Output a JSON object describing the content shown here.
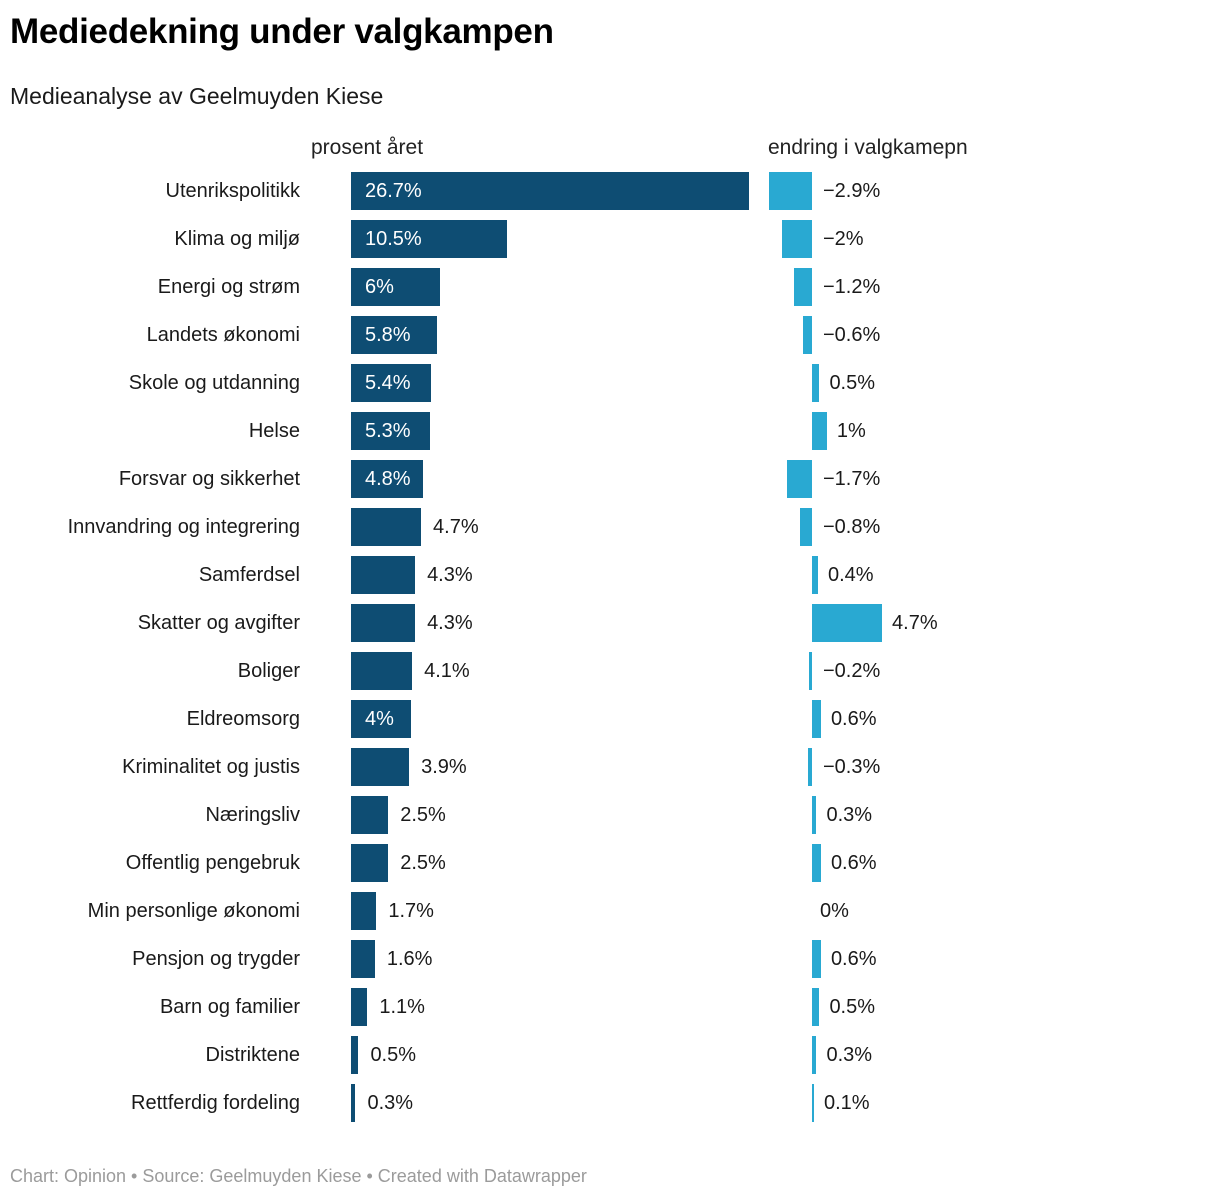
{
  "header": {
    "title": "Mediedekning under valgkampen",
    "subtitle": "Medieanalyse av Geelmuyden Kiese"
  },
  "footer": {
    "text": "Chart: Opinion • Source: Geelmuyden Kiese • Created with Datawrapper"
  },
  "colors": {
    "year_bar": "#0e4d73",
    "change_bar": "#29a9d2",
    "label_text": "#1a1a1a",
    "inside_label_text": "#ffffff",
    "footer_text": "#9b9b9b"
  },
  "chart_data": {
    "type": "bar",
    "orientation": "horizontal",
    "grid": false,
    "legend_position": "none",
    "value_suffix": "%",
    "columns": [
      {
        "key": "year",
        "header": "prosent året",
        "xlim": [
          0,
          26.7
        ],
        "diverging": false
      },
      {
        "key": "change",
        "header": "endring i valgkamepn",
        "xlim": [
          -2.9,
          4.7
        ],
        "diverging": true
      }
    ],
    "rows": [
      {
        "label": "Utenrikspolitikk",
        "year": 26.7,
        "year_label": "26.7%",
        "year_label_inside": true,
        "change": -2.9,
        "change_label": "−2.9%"
      },
      {
        "label": "Klima og miljø",
        "year": 10.5,
        "year_label": "10.5%",
        "year_label_inside": true,
        "change": -2.0,
        "change_label": "−2%"
      },
      {
        "label": "Energi og strøm",
        "year": 6.0,
        "year_label": "6%",
        "year_label_inside": true,
        "change": -1.2,
        "change_label": "−1.2%"
      },
      {
        "label": "Landets økonomi",
        "year": 5.8,
        "year_label": "5.8%",
        "year_label_inside": true,
        "change": -0.6,
        "change_label": "−0.6%"
      },
      {
        "label": "Skole og utdanning",
        "year": 5.4,
        "year_label": "5.4%",
        "year_label_inside": true,
        "change": 0.5,
        "change_label": "0.5%"
      },
      {
        "label": "Helse",
        "year": 5.3,
        "year_label": "5.3%",
        "year_label_inside": true,
        "change": 1.0,
        "change_label": "1%"
      },
      {
        "label": "Forsvar og sikkerhet",
        "year": 4.8,
        "year_label": "4.8%",
        "year_label_inside": true,
        "change": -1.7,
        "change_label": "−1.7%"
      },
      {
        "label": "Innvandring og integrering",
        "year": 4.7,
        "year_label": "4.7%",
        "year_label_inside": false,
        "change": -0.8,
        "change_label": "−0.8%"
      },
      {
        "label": "Samferdsel",
        "year": 4.3,
        "year_label": "4.3%",
        "year_label_inside": false,
        "change": 0.4,
        "change_label": "0.4%"
      },
      {
        "label": "Skatter og avgifter",
        "year": 4.3,
        "year_label": "4.3%",
        "year_label_inside": false,
        "change": 4.7,
        "change_label": "4.7%"
      },
      {
        "label": "Boliger",
        "year": 4.1,
        "year_label": "4.1%",
        "year_label_inside": false,
        "change": -0.2,
        "change_label": "−0.2%"
      },
      {
        "label": "Eldreomsorg",
        "year": 4.0,
        "year_label": "4%",
        "year_label_inside": true,
        "change": 0.6,
        "change_label": "0.6%"
      },
      {
        "label": "Kriminalitet og justis",
        "year": 3.9,
        "year_label": "3.9%",
        "year_label_inside": false,
        "change": -0.3,
        "change_label": "−0.3%"
      },
      {
        "label": "Næringsliv",
        "year": 2.5,
        "year_label": "2.5%",
        "year_label_inside": false,
        "change": 0.3,
        "change_label": "0.3%"
      },
      {
        "label": "Offentlig pengebruk",
        "year": 2.5,
        "year_label": "2.5%",
        "year_label_inside": false,
        "change": 0.6,
        "change_label": "0.6%"
      },
      {
        "label": "Min personlige økonomi",
        "year": 1.7,
        "year_label": "1.7%",
        "year_label_inside": false,
        "change": 0.0,
        "change_label": "0%"
      },
      {
        "label": "Pensjon og trygder",
        "year": 1.6,
        "year_label": "1.6%",
        "year_label_inside": false,
        "change": 0.6,
        "change_label": "0.6%"
      },
      {
        "label": "Barn og familier",
        "year": 1.1,
        "year_label": "1.1%",
        "year_label_inside": false,
        "change": 0.5,
        "change_label": "0.5%"
      },
      {
        "label": "Distriktene",
        "year": 0.5,
        "year_label": "0.5%",
        "year_label_inside": false,
        "change": 0.3,
        "change_label": "0.3%"
      },
      {
        "label": "Rettferdig fordeling",
        "year": 0.3,
        "year_label": "0.3%",
        "year_label_inside": false,
        "change": 0.1,
        "change_label": "0.1%"
      }
    ]
  }
}
